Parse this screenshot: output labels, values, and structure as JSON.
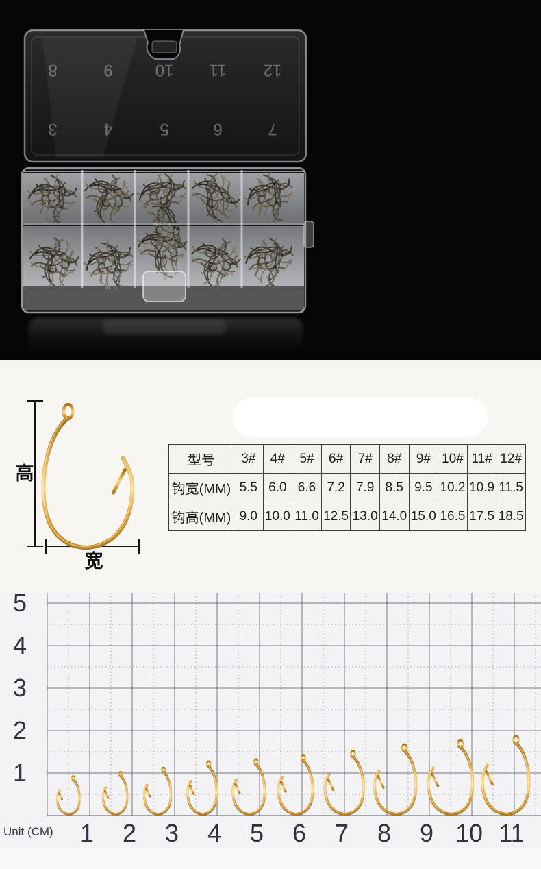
{
  "photo": {
    "lid_numbers_top": [
      "8",
      "9",
      "10",
      "11",
      "12"
    ],
    "lid_numbers_bottom": [
      "3",
      "4",
      "5",
      "6",
      "7"
    ]
  },
  "diagram": {
    "height_label": "高",
    "width_label": "宽"
  },
  "spec_table": {
    "header_label": "型号",
    "sizes": [
      "3#",
      "4#",
      "5#",
      "6#",
      "7#",
      "8#",
      "9#",
      "10#",
      "11#",
      "12#"
    ],
    "rows": [
      {
        "label": "钩宽(MM)",
        "values": [
          "5.5",
          "6.0",
          "6.6",
          "7.2",
          "7.9",
          "8.5",
          "9.5",
          "10.2",
          "10.9",
          "11.5"
        ]
      },
      {
        "label": "钩高(MM)",
        "values": [
          "9.0",
          "10.0",
          "11.0",
          "12.5",
          "13.0",
          "14.0",
          "15.0",
          "16.5",
          "17.5",
          "18.5"
        ]
      }
    ]
  },
  "size_chart": {
    "unit_label": "Unit (CM)",
    "y_ticks": [
      "5",
      "4",
      "3",
      "2",
      "1"
    ],
    "x_ticks": [
      "1",
      "2",
      "3",
      "4",
      "5",
      "6",
      "7",
      "8",
      "9",
      "10",
      "11"
    ],
    "hooks": [
      {
        "size": "3#",
        "height_cm": 0.9,
        "width_cm": 0.55,
        "x_cm": 0.5
      },
      {
        "size": "4#",
        "height_cm": 1.0,
        "width_cm": 0.6,
        "x_cm": 1.6
      },
      {
        "size": "5#",
        "height_cm": 1.1,
        "width_cm": 0.66,
        "x_cm": 2.6
      },
      {
        "size": "6#",
        "height_cm": 1.25,
        "width_cm": 0.72,
        "x_cm": 3.65
      },
      {
        "size": "7#",
        "height_cm": 1.3,
        "width_cm": 0.79,
        "x_cm": 4.75
      },
      {
        "size": "8#",
        "height_cm": 1.4,
        "width_cm": 0.85,
        "x_cm": 5.85
      },
      {
        "size": "9#",
        "height_cm": 1.5,
        "width_cm": 0.95,
        "x_cm": 7.0
      },
      {
        "size": "10#",
        "height_cm": 1.65,
        "width_cm": 1.02,
        "x_cm": 8.2
      },
      {
        "size": "11#",
        "height_cm": 1.75,
        "width_cm": 1.09,
        "x_cm": 9.5
      },
      {
        "size": "12#",
        "height_cm": 1.85,
        "width_cm": 1.15,
        "x_cm": 10.8
      }
    ]
  },
  "colors": {
    "hook_gold": "#d89a3c",
    "hook_bronze_dark": "#444032",
    "grid_line": "#555a63",
    "table_border": "#3f3f3f"
  },
  "chart_data": [
    {
      "type": "table",
      "columns": [
        "型号",
        "3#",
        "4#",
        "5#",
        "6#",
        "7#",
        "8#",
        "9#",
        "10#",
        "11#",
        "12#"
      ],
      "rows": [
        [
          "钩宽(MM)",
          5.5,
          6.0,
          6.6,
          7.2,
          7.9,
          8.5,
          9.5,
          10.2,
          10.9,
          11.5
        ],
        [
          "钩高(MM)",
          9.0,
          10.0,
          11.0,
          12.5,
          13.0,
          14.0,
          15.0,
          16.5,
          17.5,
          18.5
        ]
      ]
    },
    {
      "type": "scatter",
      "title": "Hook size comparison on centimeter grid",
      "xlabel": "Unit (CM)",
      "x_ticks": [
        1,
        2,
        3,
        4,
        5,
        6,
        7,
        8,
        9,
        10,
        11
      ],
      "y_ticks": [
        1,
        2,
        3,
        4,
        5
      ],
      "xlim": [
        0,
        11.6
      ],
      "ylim": [
        0,
        5.2
      ],
      "grid": true,
      "points": [
        {
          "size": "3#",
          "x_cm": 0.5,
          "height_cm": 0.9
        },
        {
          "size": "4#",
          "x_cm": 1.6,
          "height_cm": 1.0
        },
        {
          "size": "5#",
          "x_cm": 2.6,
          "height_cm": 1.1
        },
        {
          "size": "6#",
          "x_cm": 3.65,
          "height_cm": 1.25
        },
        {
          "size": "7#",
          "x_cm": 4.75,
          "height_cm": 1.3
        },
        {
          "size": "8#",
          "x_cm": 5.85,
          "height_cm": 1.4
        },
        {
          "size": "9#",
          "x_cm": 7.0,
          "height_cm": 1.5
        },
        {
          "size": "10#",
          "x_cm": 8.2,
          "height_cm": 1.65
        },
        {
          "size": "11#",
          "x_cm": 9.5,
          "height_cm": 1.75
        },
        {
          "size": "12#",
          "x_cm": 10.8,
          "height_cm": 1.85
        }
      ]
    }
  ]
}
